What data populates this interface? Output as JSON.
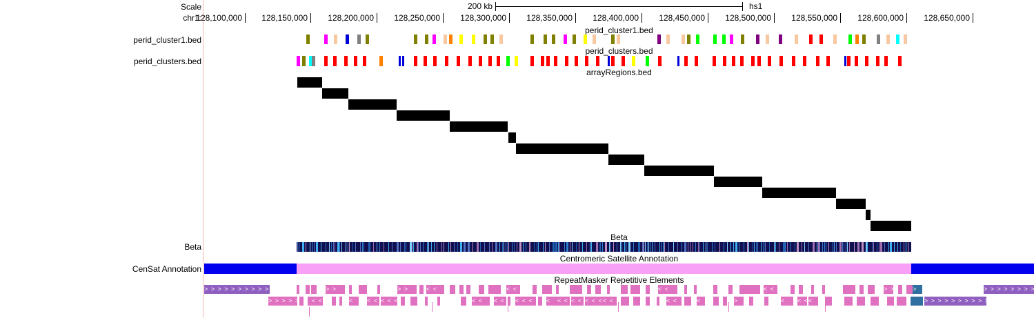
{
  "side_labels": {
    "scale": "Scale",
    "chrom": "chr1:",
    "perid_cluster1": "perid_cluster1.bed",
    "perid_clusters": "perid_clusters.bed",
    "beta": "Beta",
    "censat": "CenSat Annotation"
  },
  "scale_bar": {
    "label": "200 kb",
    "assembly": "hs1"
  },
  "ruler": {
    "positions": [
      128100000,
      128150000,
      128200000,
      128250000,
      128300000,
      128350000,
      128400000,
      128450000,
      128500000,
      128550000,
      128600000,
      128650000
    ],
    "labels": [
      "128,100,000",
      "128,150,000",
      "128,200,000",
      "128,250,000",
      "128,300,000",
      "128,350,000",
      "128,400,000",
      "128,450,000",
      "128,500,000",
      "128,550,000",
      "128,600,000",
      "128,650,000"
    ]
  },
  "tracks": {
    "perid_cluster1": {
      "title": "perid_cluster1.bed"
    },
    "perid_clusters": {
      "title": "perid_clusters.bed"
    },
    "array_regions": {
      "title": "arrayRegions.bed"
    },
    "beta": {
      "title": "Beta"
    },
    "censat": {
      "title": "Centromeric Satellite Annotation"
    },
    "repeatmasker": {
      "title": "RepeatMasker Repetitive Elements"
    }
  },
  "colors": {
    "olive": "#808000",
    "magenta": "#ff00ff",
    "peach": "#f8c8a0",
    "blue": "#0000d8",
    "gray": "#808080",
    "orange": "#ff8000",
    "yellow": "#ffff00",
    "green": "#00ff00",
    "purple": "#800080",
    "cyan": "#00ffff",
    "red": "#ff0000",
    "black": "#000000",
    "beta_bg": "#101050",
    "censat_blue": "#0000ee",
    "censat_pink": "#f8a0f8",
    "rm_pink": "#e070c0",
    "rm_purple": "#9060c0",
    "rm_teal": "#3070a0"
  },
  "view": {
    "start": 128069500,
    "end": 128696500
  }
}
